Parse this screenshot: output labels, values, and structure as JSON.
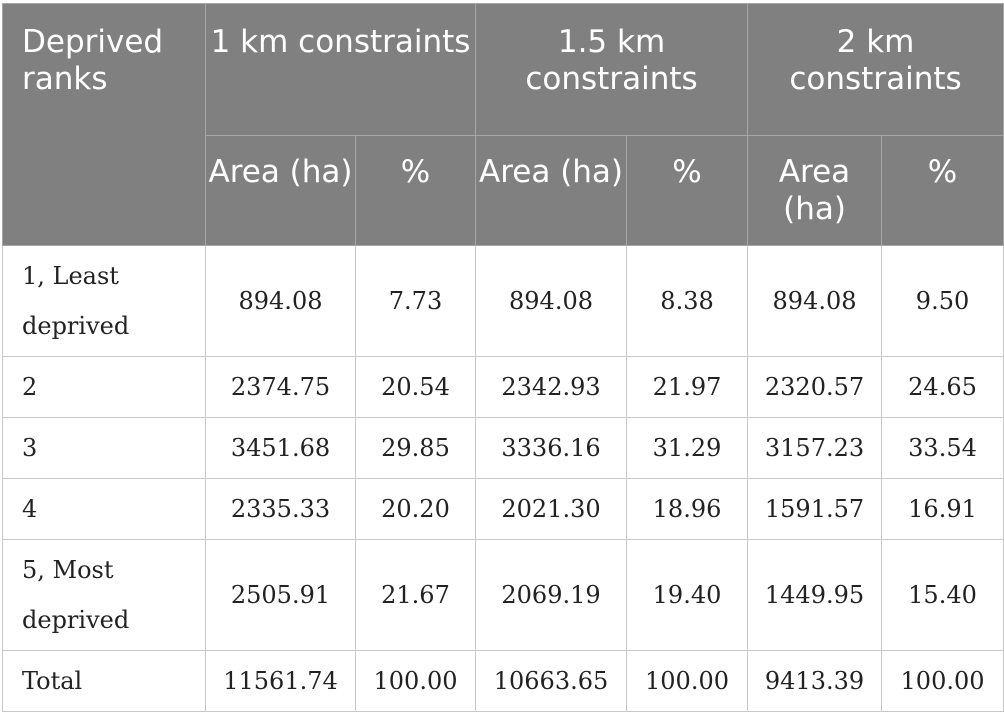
{
  "header": {
    "rank_label": "Deprived ranks",
    "groups": [
      {
        "label": "1 km constraints"
      },
      {
        "label": "1.5 km constraints"
      },
      {
        "label": "2 km constraints"
      }
    ],
    "sub_area": "Area (ha)",
    "sub_pct": "%"
  },
  "rows": [
    {
      "rank": "1, Least deprived",
      "v": [
        "894.08",
        "7.73",
        "894.08",
        "8.38",
        "894.08",
        "9.50"
      ]
    },
    {
      "rank": "2",
      "v": [
        "2374.75",
        "20.54",
        "2342.93",
        "21.97",
        "2320.57",
        "24.65"
      ]
    },
    {
      "rank": "3",
      "v": [
        "3451.68",
        "29.85",
        "3336.16",
        "31.29",
        "3157.23",
        "33.54"
      ]
    },
    {
      "rank": "4",
      "v": [
        "2335.33",
        "20.20",
        "2021.30",
        "18.96",
        "1591.57",
        "16.91"
      ]
    },
    {
      "rank": "5, Most deprived",
      "v": [
        "2505.91",
        "21.67",
        "2069.19",
        "19.40",
        "1449.95",
        "15.40"
      ]
    },
    {
      "rank": "Total",
      "v": [
        "11561.74",
        "100.00",
        "10663.65",
        "100.00",
        "9413.39",
        "100.00"
      ]
    }
  ]
}
